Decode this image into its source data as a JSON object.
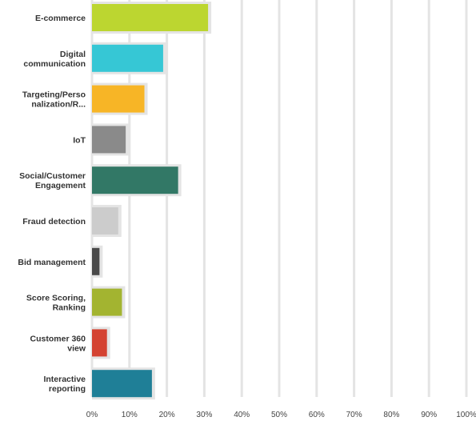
{
  "chart_data": {
    "type": "bar",
    "orientation": "horizontal",
    "categories": [
      [
        "E-commerce"
      ],
      [
        "Digital",
        "communication"
      ],
      [
        "Targeting/Perso",
        "nalization/R..."
      ],
      [
        "IoT"
      ],
      [
        "Social/Customer",
        "Engagement"
      ],
      [
        "Fraud detection"
      ],
      [
        "Bid management"
      ],
      [
        "Score Scoring,",
        "Ranking"
      ],
      [
        "Customer 360",
        "view"
      ],
      [
        "Interactive",
        "reporting"
      ]
    ],
    "values": [
      31,
      19,
      14,
      9,
      23,
      7,
      2,
      8,
      4,
      16
    ],
    "colors": [
      "#bcd630",
      "#36c7d5",
      "#f7b526",
      "#8a8a8a",
      "#327866",
      "#cccccc",
      "#4a4a4a",
      "#a3b430",
      "#d44332",
      "#1f7f97"
    ],
    "xlim": [
      0,
      100
    ],
    "xticks": [
      "0%",
      "10%",
      "20%",
      "30%",
      "40%",
      "50%",
      "60%",
      "70%",
      "80%",
      "90%",
      "100%"
    ],
    "title": "",
    "xlabel": "",
    "ylabel": "",
    "grid": true,
    "legend": "none"
  }
}
